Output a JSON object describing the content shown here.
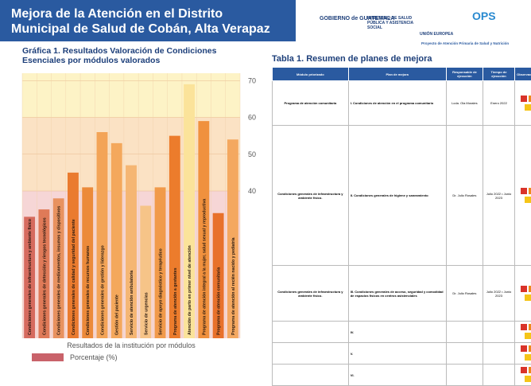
{
  "header": {
    "title": "Mejora de la Atención en el Distrito Municipal de Salud de Cobán, Alta Verapaz",
    "logos": [
      "GOBIERNO de GUATEMALA",
      "MINISTERIO DE SALUD PÚBLICA Y ASISTENCIA SOCIAL",
      "UNIÓN EUROPEA",
      "OPS",
      "Proyecto de Atención Primaria de Salud y Nutrición"
    ]
  },
  "chart_data": {
    "type": "bar",
    "title": "Gráfica 1. Resultados Valoración de Condiciones Esenciales por módulos valorados",
    "x_label": "Resultados de la institución por módulos",
    "categories": [
      "Condiciones generales de infraestructura y ambiente físico",
      "Condiciones generales de detección y riesgos tecnológicos",
      "Condiciones generales de medicamentos, insumos y dispositivos",
      "Condiciones generales de calidad y seguridad del paciente",
      "Condiciones generales de recursos humanos",
      "Condiciones generales de gestión y liderazgo",
      "Gestión del paciente",
      "Servicio de atención ambulatoria",
      "Servicio de urgencias",
      "Servicio de apoyo diagnóstico y terapéutico",
      "Programa de atención a gestantes",
      "Atención de parto en primer nivel de atención",
      "Programa de atención integral a la mujer, salud sexual y reproductiva",
      "Programa de atención comunitaria",
      "Programa de atención al recién nacido y pediatría"
    ],
    "values": [
      33,
      35,
      38,
      45,
      41,
      56,
      53,
      47,
      36,
      41,
      55,
      69,
      59,
      34,
      54
    ],
    "colors": [
      "#d66b5e",
      "#df7a58",
      "#e8925f",
      "#ea7b2f",
      "#ec8a3a",
      "#f3a457",
      "#f4a85c",
      "#f5b673",
      "#f6c488",
      "#f19a4a",
      "#ec7c2c",
      "#fbe39a",
      "#f0913e",
      "#e8712b",
      "#f4a860"
    ],
    "ylim": [
      0,
      72
    ],
    "yticks": [
      40,
      50,
      60,
      70
    ],
    "series_name": "Porcentaje (%)",
    "legend_color": "#c9626a"
  },
  "table": {
    "title": "Tabla 1. Resumen de planes de mejora",
    "headers": [
      "Módulo priorizado",
      "Plan de mejora",
      "Responsable de ejecución",
      "Tiempo de ejecución",
      "Observaciones"
    ],
    "rows": [
      [
        "Programa de atención comunitaria",
        "I. Condiciones de atención en el programa comunitario",
        "Lcda. Ola Morales",
        "Enero 2022"
      ],
      [
        "Condiciones generales de infraestructura y ambiente físico.",
        "II. Condiciones generales de higiene y saneamiento",
        "Dr. Julio Rosales",
        "Julio 2022 • Junio 2023"
      ],
      [
        "Condiciones generales de infraestructura y ambiente físico.",
        "III. Condiciones generales de acceso, seguridad y comodidad de espacios físicos en centros asistenciales",
        "Dr. Julio Rosales",
        "Julio 2022 • Junio 2023"
      ],
      [
        "",
        "IV.",
        "",
        ""
      ],
      [
        "",
        "V.",
        "",
        ""
      ],
      [
        "",
        "VI.",
        "",
        ""
      ]
    ]
  }
}
